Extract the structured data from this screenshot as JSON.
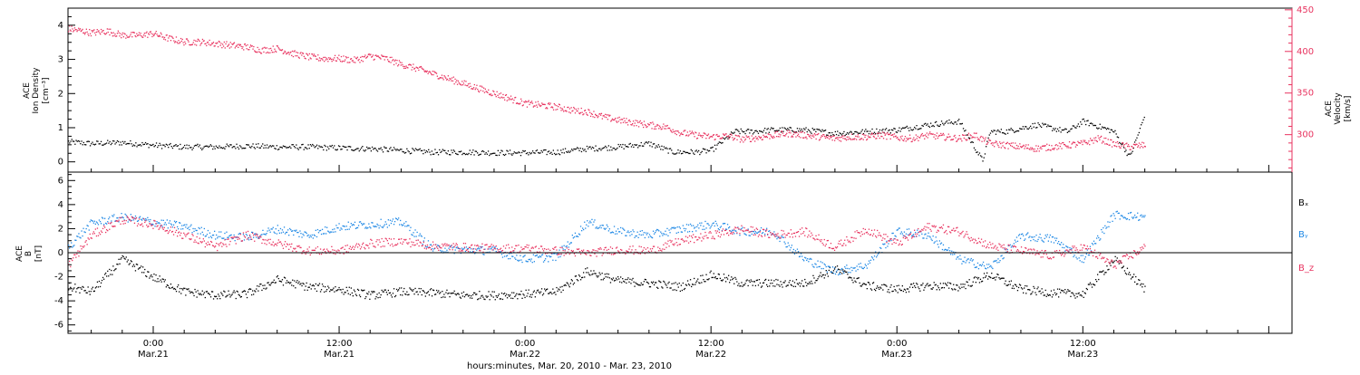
{
  "chart_data": [
    {
      "type": "scatter",
      "panel": "top",
      "ylabel_left": [
        "ACE",
        "Ion Density",
        "[cm⁻³]"
      ],
      "ylabel_right": [
        "ACE",
        "Velocity",
        "[km/s]"
      ],
      "ylim_left": [
        -0.3,
        4.5
      ],
      "ylim_right": [
        255,
        452
      ],
      "yticks_left": [
        "0",
        "1",
        "2",
        "3",
        "4"
      ],
      "yticks_right": [
        "300",
        "350",
        "400",
        "450"
      ],
      "colors": {
        "density": "#000000",
        "velocity": "#e8335f"
      },
      "series": [
        {
          "name": "density",
          "color": "#000000",
          "x_hours": [
            -5.5,
            -4,
            -2,
            0,
            2,
            4,
            6,
            8,
            10,
            12,
            14,
            16,
            18,
            20,
            22,
            24,
            26,
            28,
            30,
            32,
            33.5,
            35,
            36,
            37.5,
            38.5,
            40,
            42,
            44,
            46,
            48,
            50,
            52,
            53.5,
            54,
            55,
            57,
            59,
            60,
            62,
            63,
            64
          ],
          "y": [
            0.6,
            0.55,
            0.58,
            0.5,
            0.45,
            0.45,
            0.48,
            0.45,
            0.45,
            0.42,
            0.4,
            0.35,
            0.3,
            0.3,
            0.28,
            0.28,
            0.3,
            0.4,
            0.45,
            0.55,
            0.3,
            0.3,
            0.35,
            0.9,
            0.9,
            0.95,
            0.95,
            0.85,
            0.9,
            0.95,
            1.1,
            1.2,
            0.05,
            0.9,
            0.9,
            1.1,
            0.9,
            1.2,
            0.9,
            0.15,
            1.4
          ]
        },
        {
          "name": "velocity",
          "color": "#e8335f",
          "x_hours": [
            -5.5,
            -4,
            -3,
            -2,
            -1,
            0,
            1,
            2,
            3,
            4,
            5,
            6,
            7,
            8,
            9,
            10,
            11,
            12,
            13,
            14,
            15,
            16,
            17,
            18,
            19,
            20,
            21,
            22,
            23,
            24,
            25,
            26,
            27,
            28,
            29,
            30,
            31,
            32,
            33,
            34,
            35,
            36,
            37,
            38,
            39,
            40,
            41,
            42,
            43,
            44,
            45,
            46,
            47,
            48,
            49,
            50,
            51,
            52,
            53,
            54,
            55,
            56,
            57,
            58,
            59,
            60,
            61,
            62,
            63,
            64
          ],
          "y": [
            428,
            423,
            425,
            420,
            420,
            422,
            416,
            412,
            412,
            410,
            408,
            406,
            402,
            404,
            398,
            394,
            392,
            392,
            390,
            395,
            392,
            385,
            380,
            374,
            368,
            362,
            356,
            350,
            344,
            338,
            336,
            334,
            330,
            328,
            322,
            318,
            315,
            312,
            310,
            303,
            300,
            298,
            299,
            295,
            297,
            300,
            302,
            300,
            298,
            296,
            298,
            298,
            300,
            297,
            296,
            300,
            298,
            296,
            300,
            290,
            288,
            286,
            284,
            286,
            288,
            290,
            296,
            289,
            286,
            288
          ]
        }
      ]
    },
    {
      "type": "scatter",
      "panel": "bottom",
      "ylabel": [
        "ACE",
        "B",
        "[nT]"
      ],
      "ylim": [
        -6.7,
        6.7
      ],
      "yticks": [
        "-6",
        "-4",
        "-2",
        "0",
        "2",
        "4",
        "6"
      ],
      "zero_line": true,
      "legend": [
        {
          "label": "Bₓ",
          "color": "#000000"
        },
        {
          "label": "Bᵧ",
          "color": "#1e88e5"
        },
        {
          "label": "B_z",
          "color": "#e8335f"
        }
      ],
      "series": [
        {
          "name": "Bx",
          "color": "#000000",
          "x_hours": [
            -5.5,
            -4,
            -2,
            0,
            2,
            4,
            6,
            8,
            10,
            12,
            14,
            16,
            18,
            20,
            22,
            24,
            26,
            28,
            30,
            32,
            34,
            36,
            38,
            40,
            42,
            44,
            46,
            48,
            50,
            52,
            54,
            56,
            58,
            60,
            62,
            64
          ],
          "y": [
            -2.8,
            -3.2,
            -0.5,
            -2,
            -3.2,
            -3.5,
            -3.4,
            -2.2,
            -2.8,
            -3.0,
            -3.5,
            -3.2,
            -3.3,
            -3.5,
            -3.5,
            -3.4,
            -3.2,
            -1.5,
            -2.3,
            -2.5,
            -2.8,
            -1.8,
            -2.5,
            -2.5,
            -2.5,
            -1.3,
            -2.7,
            -3.0,
            -2.7,
            -2.8,
            -1.8,
            -3.0,
            -3.3,
            -3.4,
            -0.5,
            -3.0
          ]
        },
        {
          "name": "By",
          "color": "#1e88e5",
          "x_hours": [
            -5.5,
            -4,
            -2,
            0,
            2,
            4,
            6,
            8,
            10,
            12,
            14,
            16,
            18,
            20,
            22,
            24,
            26,
            28,
            30,
            32,
            34,
            36,
            38,
            40,
            42,
            44,
            46,
            48,
            50,
            52,
            54,
            56,
            58,
            60,
            62,
            64
          ],
          "y": [
            0.5,
            2.5,
            3.0,
            2.6,
            2.2,
            1.5,
            1.3,
            2.0,
            1.5,
            2.2,
            2.4,
            2.6,
            0.4,
            0.3,
            0.2,
            -0.5,
            -0.3,
            2.6,
            1.8,
            1.5,
            2.0,
            2.4,
            1.8,
            1.8,
            -0.5,
            -1.5,
            -1.0,
            1.8,
            1.5,
            -0.5,
            -1.2,
            1.4,
            1.2,
            -0.5,
            3.2,
            3.0
          ]
        },
        {
          "name": "Bz",
          "color": "#e8335f",
          "x_hours": [
            -5.5,
            -4,
            -2,
            0,
            2,
            4,
            6,
            8,
            10,
            12,
            14,
            16,
            18,
            20,
            22,
            24,
            26,
            28,
            30,
            32,
            34,
            36,
            38,
            40,
            42,
            44,
            46,
            48,
            50,
            52,
            54,
            56,
            58,
            60,
            62,
            64
          ],
          "y": [
            -1.0,
            1.5,
            2.8,
            2.4,
            1.5,
            0.5,
            1.5,
            0.8,
            0.2,
            0.2,
            0.8,
            1.0,
            0.6,
            0.5,
            0.4,
            0.4,
            0.2,
            0.0,
            0.3,
            0.2,
            1.0,
            1.5,
            2.0,
            1.5,
            1.8,
            0.5,
            2.0,
            0.8,
            2.2,
            1.8,
            0.6,
            0.2,
            -0.2,
            0.5,
            -1.0,
            0.5
          ]
        }
      ]
    }
  ],
  "x_axis": {
    "range_hours": [
      -5.5,
      73.5
    ],
    "ticks": [
      {
        "h": 0,
        "time": "0:00",
        "date": "Mar.21"
      },
      {
        "h": 12,
        "time": "12:00",
        "date": "Mar.21"
      },
      {
        "h": 24,
        "time": "0:00",
        "date": "Mar.22"
      },
      {
        "h": 36,
        "time": "12:00",
        "date": "Mar.22"
      },
      {
        "h": 48,
        "time": "0:00",
        "date": "Mar.23"
      },
      {
        "h": 60,
        "time": "12:00",
        "date": "Mar.23"
      }
    ],
    "label": "hours:minutes, Mar. 20, 2010 - Mar. 23, 2010"
  }
}
